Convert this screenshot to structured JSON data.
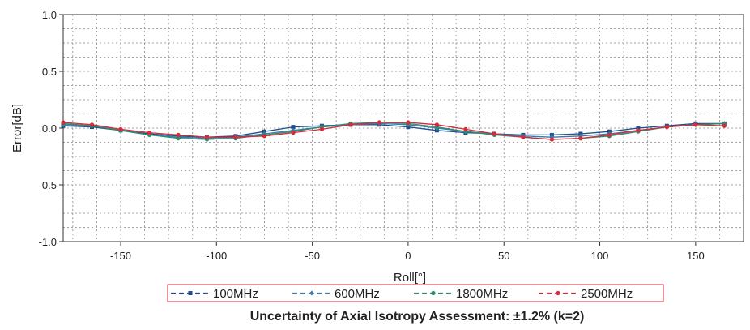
{
  "chart_data": {
    "type": "line",
    "title": "",
    "xlabel": "Roll[°]",
    "ylabel": "Error[dB]",
    "caption": "Uncertainty of Axial Isotropy Assessment: ±1.2% (k=2)",
    "xlim": [
      -180,
      175
    ],
    "ylim": [
      -1.0,
      1.0
    ],
    "xticks": [
      -150,
      -100,
      -50,
      0,
      50,
      100,
      150
    ],
    "yticks": [
      -1.0,
      -0.5,
      0.0,
      0.5,
      1.0
    ],
    "ytick_labels": [
      "-1.0",
      "-0.5",
      "0.0",
      "0.5",
      "1.0"
    ],
    "grid": true,
    "legend_position": "bottom",
    "x": [
      -180,
      -165,
      -150,
      -135,
      -120,
      -105,
      -90,
      -75,
      -60,
      -45,
      -30,
      -15,
      0,
      15,
      30,
      45,
      60,
      75,
      90,
      105,
      120,
      135,
      150,
      165
    ],
    "series": [
      {
        "name": "100MHz",
        "color": "#1f4e8c",
        "marker": "square",
        "values": [
          0.02,
          0.01,
          -0.02,
          -0.05,
          -0.07,
          -0.08,
          -0.07,
          -0.03,
          0.01,
          0.02,
          0.03,
          0.03,
          0.01,
          -0.02,
          -0.04,
          -0.05,
          -0.06,
          -0.06,
          -0.05,
          -0.03,
          0.0,
          0.02,
          0.04,
          0.04
        ]
      },
      {
        "name": "600MHz",
        "color": "#3a7ca5",
        "marker": "diamond",
        "values": [
          0.03,
          0.02,
          -0.02,
          -0.06,
          -0.08,
          -0.09,
          -0.08,
          -0.05,
          -0.02,
          0.01,
          0.03,
          0.04,
          0.03,
          0.0,
          -0.03,
          -0.05,
          -0.07,
          -0.08,
          -0.07,
          -0.05,
          -0.02,
          0.01,
          0.03,
          0.04
        ]
      },
      {
        "name": "1800MHz",
        "color": "#2e8b6e",
        "marker": "circle",
        "values": [
          0.04,
          0.02,
          -0.02,
          -0.06,
          -0.09,
          -0.1,
          -0.09,
          -0.06,
          -0.03,
          0.01,
          0.04,
          0.05,
          0.04,
          0.01,
          -0.03,
          -0.06,
          -0.08,
          -0.1,
          -0.09,
          -0.07,
          -0.03,
          0.01,
          0.03,
          0.04
        ]
      },
      {
        "name": "2500MHz",
        "color": "#d62b3a",
        "marker": "circle",
        "values": [
          0.05,
          0.03,
          -0.01,
          -0.04,
          -0.06,
          -0.08,
          -0.08,
          -0.07,
          -0.04,
          -0.01,
          0.03,
          0.05,
          0.05,
          0.03,
          -0.01,
          -0.05,
          -0.08,
          -0.1,
          -0.09,
          -0.06,
          -0.02,
          0.01,
          0.03,
          0.02
        ]
      }
    ]
  }
}
